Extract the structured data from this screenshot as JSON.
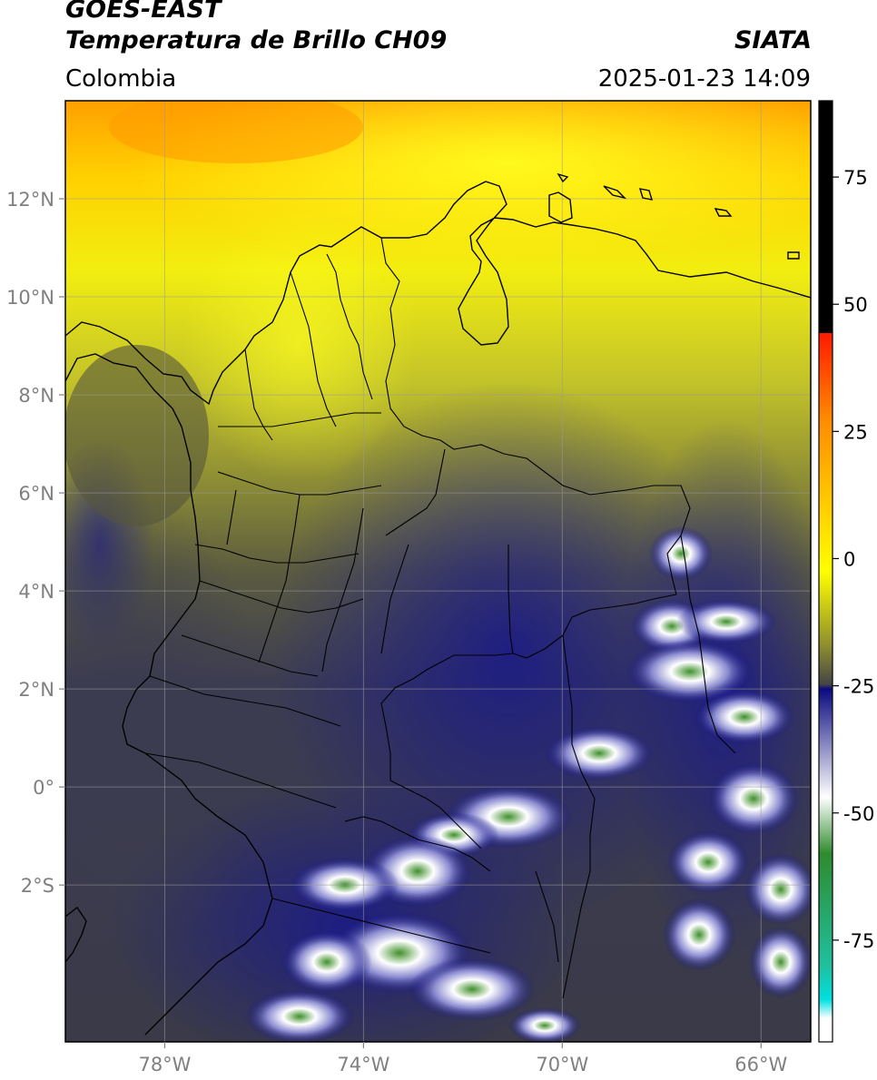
{
  "header": {
    "satellite": "GOES-EAST",
    "product": "Temperatura de Brillo CH09",
    "region": "Colombia",
    "agency": "SIATA",
    "datetime": "2025-01-23 14:09"
  },
  "map": {
    "lon_range": [
      -80,
      -65
    ],
    "lat_range": [
      -5.2,
      14
    ],
    "lon_ticks": [
      {
        "value": -78,
        "label": "78°W"
      },
      {
        "value": -74,
        "label": "74°W"
      },
      {
        "value": -70,
        "label": "70°W"
      },
      {
        "value": -66,
        "label": "66°W"
      }
    ],
    "lat_ticks": [
      {
        "value": 12,
        "label": "12°N"
      },
      {
        "value": 10,
        "label": "10°N"
      },
      {
        "value": 8,
        "label": "8°N"
      },
      {
        "value": 6,
        "label": "6°N"
      },
      {
        "value": 4,
        "label": "4°N"
      },
      {
        "value": 2,
        "label": "2°N"
      },
      {
        "value": 0,
        "label": "0°"
      },
      {
        "value": -2,
        "label": "2°S"
      }
    ],
    "gridlines": true
  },
  "colorbar": {
    "range": [
      -95,
      90
    ],
    "ticks": [
      {
        "value": 75,
        "label": "75"
      },
      {
        "value": 50,
        "label": "50"
      },
      {
        "value": 25,
        "label": "25"
      },
      {
        "value": 0,
        "label": "0"
      },
      {
        "value": -25,
        "label": "-25"
      },
      {
        "value": -50,
        "label": "-50"
      },
      {
        "value": -75,
        "label": "-75"
      }
    ],
    "colors": {
      "black": "#000000",
      "red": "#ff1a00",
      "orange": "#ff8c00",
      "yellow": "#ffff00",
      "olive": "#8c8c30",
      "gray": "#454545",
      "navy": "#0a0a80",
      "white": "#ffffff",
      "green": "#2e8b2e",
      "cyan": "#00e0e0"
    }
  }
}
